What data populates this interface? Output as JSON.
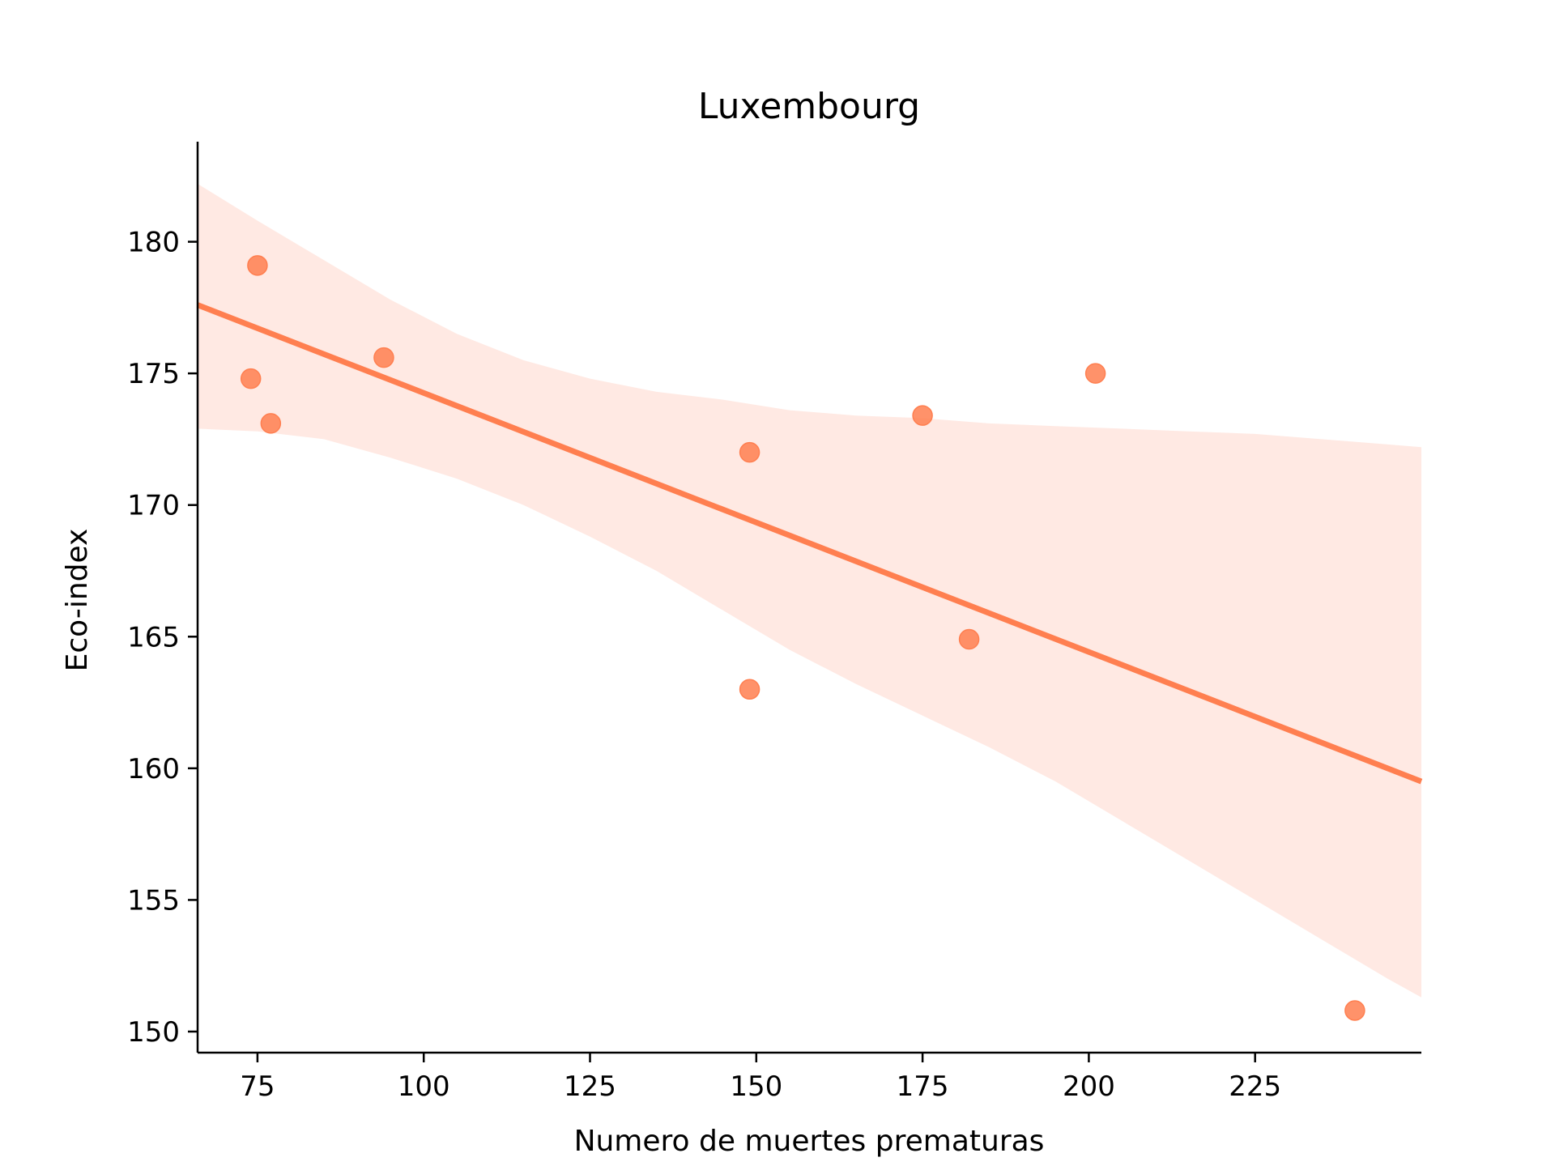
{
  "chart_data": {
    "type": "scatter",
    "title": "Luxembourg",
    "xlabel": "Numero de muertes prematuras",
    "ylabel": "Eco-index",
    "xlim": [
      66,
      250
    ],
    "ylim": [
      149.2,
      183.8
    ],
    "xticks": [
      75,
      100,
      125,
      150,
      175,
      200,
      225
    ],
    "yticks": [
      150,
      155,
      160,
      165,
      170,
      175,
      180
    ],
    "grid": false,
    "colors": {
      "points": "#ff7f50",
      "line": "#ff7f50",
      "band": "#ffe9e3"
    },
    "points": [
      {
        "x": 75,
        "y": 179.1
      },
      {
        "x": 74,
        "y": 174.8
      },
      {
        "x": 77,
        "y": 173.1
      },
      {
        "x": 94,
        "y": 175.6
      },
      {
        "x": 149,
        "y": 172.0
      },
      {
        "x": 149,
        "y": 163.0
      },
      {
        "x": 175,
        "y": 173.4
      },
      {
        "x": 182,
        "y": 164.9
      },
      {
        "x": 201,
        "y": 175.0
      },
      {
        "x": 240,
        "y": 150.8
      }
    ],
    "regression": {
      "x": [
        66,
        250
      ],
      "y": [
        177.6,
        159.5
      ]
    },
    "confidence_band": {
      "x": [
        66,
        75,
        85,
        95,
        105,
        115,
        125,
        135,
        145,
        155,
        165,
        175,
        185,
        195,
        205,
        215,
        225,
        235,
        245,
        250
      ],
      "upper": [
        182.2,
        180.8,
        179.3,
        177.8,
        176.5,
        175.5,
        174.8,
        174.3,
        174.0,
        173.6,
        173.4,
        173.3,
        173.1,
        173.0,
        172.9,
        172.8,
        172.7,
        172.5,
        172.3,
        172.2
      ],
      "lower": [
        172.9,
        172.8,
        172.5,
        171.8,
        171.0,
        170.0,
        168.8,
        167.5,
        166.0,
        164.5,
        163.2,
        162.0,
        160.8,
        159.5,
        158.0,
        156.5,
        155.0,
        153.5,
        152.0,
        151.3
      ]
    }
  }
}
